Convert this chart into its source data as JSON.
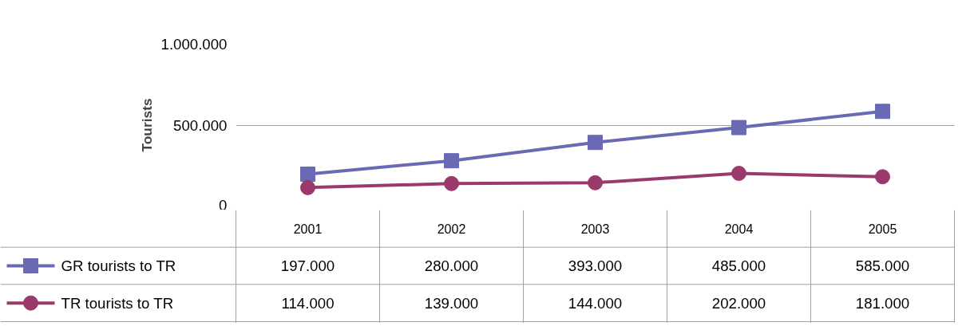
{
  "chart_data": {
    "type": "line",
    "ylabel": "Tourists",
    "categories": [
      "2001",
      "2002",
      "2003",
      "2004",
      "2005"
    ],
    "series": [
      {
        "name": "GR tourists to TR",
        "color": "#6a6ab4",
        "marker": "square",
        "values": [
          197000,
          280000,
          393000,
          485000,
          585000
        ],
        "value_labels": [
          "197.000",
          "280.000",
          "393.000",
          "485.000",
          "585.000"
        ]
      },
      {
        "name": "TR tourists to TR",
        "color": "#9a3a6c",
        "marker": "circle",
        "values": [
          114000,
          139000,
          144000,
          202000,
          181000
        ],
        "value_labels": [
          "114.000",
          "139.000",
          "144.000",
          "202.000",
          "181.000"
        ]
      }
    ],
    "ylim": [
      0,
      1000000
    ],
    "yticks": [
      {
        "value": 0,
        "label": "0"
      },
      {
        "value": 500000,
        "label": "500.000"
      },
      {
        "value": 1000000,
        "label": "1.000.000"
      }
    ],
    "grid": "y",
    "legend": "bottom"
  }
}
